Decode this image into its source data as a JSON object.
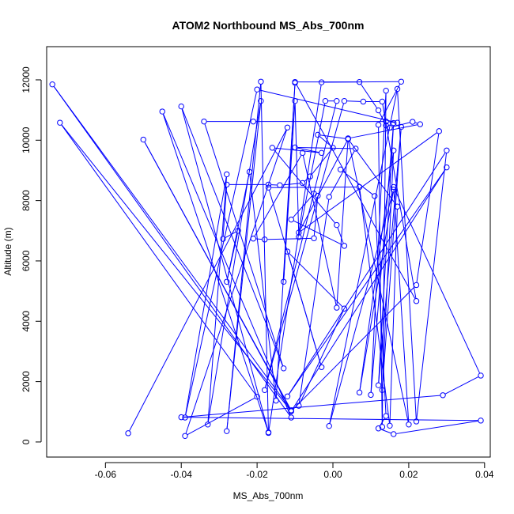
{
  "chart_data": {
    "type": "line",
    "title": "ATOM2 Northbound MS_Abs_700nm",
    "xlabel": "MS_Abs_700nm",
    "ylabel": "Altitude (m)",
    "xlim": [
      -0.0755,
      0.0415
    ],
    "ylim": [
      -500,
      13100
    ],
    "x_ticks": [
      -0.06,
      -0.04,
      -0.02,
      0.0,
      0.02,
      0.04
    ],
    "x_tick_labels": [
      "-0.06",
      "-0.04",
      "-0.02",
      "0.00",
      "0.02",
      "0.04"
    ],
    "y_ticks": [
      0,
      2000,
      4000,
      6000,
      8000,
      10000,
      12000
    ],
    "y_tick_labels": [
      "0",
      "2000",
      "4000",
      "6000",
      "8000",
      "10000",
      "12000"
    ],
    "grid": false,
    "series_color": "#0000ff",
    "series": [
      {
        "marker": "open-circle",
        "line": true,
        "points": [
          [
            -0.054,
            290
          ],
          [
            -0.012,
            10420
          ],
          [
            -0.039,
            200
          ],
          [
            -0.02,
            1500
          ],
          [
            -0.072,
            10580
          ],
          [
            -0.011,
            1020
          ],
          [
            -0.05,
            10020
          ],
          [
            -0.011,
            1050
          ],
          [
            -0.074,
            11850
          ],
          [
            -0.011,
            810
          ],
          [
            -0.045,
            10950
          ],
          [
            -0.017,
            320
          ],
          [
            -0.04,
            11120
          ],
          [
            -0.013,
            2440
          ],
          [
            -0.034,
            10620
          ],
          [
            -0.021,
            10620
          ],
          [
            0.014,
            10620
          ],
          [
            0.017,
            10580
          ],
          [
            -0.02,
            11680
          ],
          [
            -0.039,
            810
          ],
          [
            -0.028,
            8870
          ],
          [
            -0.033,
            580
          ],
          [
            -0.019,
            11300
          ],
          [
            -0.028,
            360
          ],
          [
            -0.019,
            11940
          ],
          [
            -0.017,
            300
          ],
          [
            -0.003,
            11920
          ],
          [
            0.018,
            11940
          ],
          [
            0.012,
            10510
          ],
          [
            0.013,
            500
          ],
          [
            0.014,
            11640
          ],
          [
            0.01,
            1560
          ],
          [
            0.016,
            10570
          ],
          [
            0.012,
            1880
          ],
          [
            0.018,
            10440
          ],
          [
            0.013,
            1720
          ],
          [
            0.016,
            9660
          ],
          [
            0.007,
            1640
          ],
          [
            0.016,
            8360
          ],
          [
            -0.001,
            530
          ],
          [
            0.017,
            11700
          ],
          [
            0.022,
            680
          ],
          [
            0.03,
            9660
          ],
          [
            -0.012,
            1510
          ],
          [
            0.03,
            9100
          ],
          [
            -0.011,
            1020
          ],
          [
            0.022,
            5200
          ],
          [
            0.028,
            10300
          ],
          [
            -0.009,
            6940
          ],
          [
            0.004,
            10040
          ],
          [
            -0.004,
            10180
          ],
          [
            0.0,
            9750
          ],
          [
            -0.006,
            8800
          ],
          [
            -0.008,
            8580
          ],
          [
            -0.014,
            8510
          ],
          [
            -0.017,
            8530
          ],
          [
            -0.028,
            8530
          ],
          [
            -0.029,
            6730
          ],
          [
            -0.025,
            7000
          ],
          [
            -0.028,
            5310
          ],
          [
            -0.022,
            8950
          ],
          [
            -0.015,
            1370
          ],
          [
            -0.01,
            11900
          ],
          [
            -0.013,
            5310
          ],
          [
            -0.01,
            11300
          ],
          [
            -0.009,
            6790
          ],
          [
            -0.002,
            11300
          ],
          [
            0.001,
            11300
          ],
          [
            -0.018,
            1720
          ],
          [
            0.003,
            11300
          ],
          [
            0.008,
            11280
          ],
          [
            0.013,
            11280
          ],
          [
            0.022,
            4670
          ],
          [
            -0.01,
            11930
          ],
          [
            0.007,
            11930
          ],
          [
            0.012,
            10990
          ],
          [
            0.014,
            10490
          ],
          [
            0.015,
            10420
          ],
          [
            0.021,
            10610
          ],
          [
            0.023,
            10530
          ],
          [
            0.004,
            10060
          ],
          [
            0.001,
            4450
          ],
          [
            -0.008,
            9580
          ],
          [
            -0.021,
            6740
          ],
          [
            -0.018,
            6710
          ],
          [
            -0.005,
            6750
          ],
          [
            -0.004,
            8160
          ],
          [
            -0.005,
            8230
          ],
          [
            -0.011,
            7370
          ],
          [
            0.003,
            6500
          ],
          [
            0.001,
            7190
          ],
          [
            -0.016,
            9750
          ],
          [
            -0.003,
            9580
          ],
          [
            -0.01,
            9760
          ],
          [
            0.006,
            9720
          ],
          [
            -0.001,
            8120
          ],
          [
            -0.009,
            1200
          ],
          [
            0.003,
            4420
          ],
          [
            -0.012,
            6310
          ],
          [
            -0.003,
            2480
          ],
          [
            -0.017,
            8430
          ],
          [
            0.007,
            8450
          ],
          [
            0.015,
            540
          ],
          [
            0.017,
            7800
          ],
          [
            0.004,
            10040
          ],
          [
            0.02,
            580
          ],
          [
            0.016,
            8450
          ],
          [
            0.039,
            2200
          ],
          [
            0.029,
            1550
          ],
          [
            -0.04,
            820
          ],
          [
            0.039,
            710
          ],
          [
            0.016,
            260
          ],
          [
            0.012,
            450
          ],
          [
            0.014,
            860
          ],
          [
            0.011,
            8150
          ],
          [
            0.002,
            9030
          ]
        ]
      }
    ]
  }
}
